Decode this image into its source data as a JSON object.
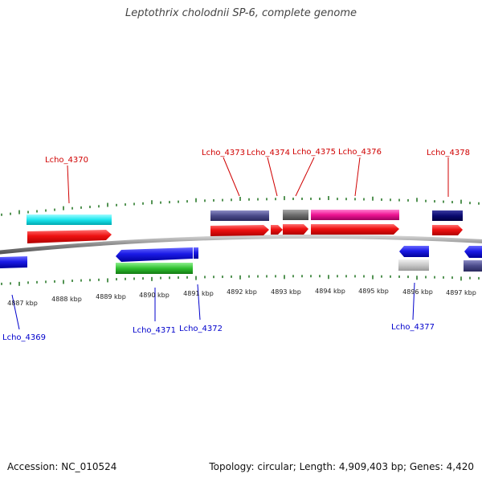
{
  "title": "Leptothrix cholodnii SP-6, complete genome",
  "footer": {
    "accession": "Accession: NC_010524",
    "summary": "Topology: circular; Length: 4,909,403 bp; Genes: 4,420"
  },
  "kbp_labels": [
    "4887 kbp",
    "4888 kbp",
    "4889 kbp",
    "4890 kbp",
    "4891 kbp",
    "4892 kbp",
    "4893 kbp",
    "4894 kbp",
    "4895 kbp",
    "4896 kbp",
    "4897 kbp"
  ],
  "gene_labels_top": [
    "Lcho_4370",
    "Lcho_4373",
    "Lcho_4374",
    "Lcho_4375",
    "Lcho_4376",
    "Lcho_4378"
  ],
  "gene_labels_bottom": [
    "Lcho_4369",
    "Lcho_4371",
    "Lcho_4372",
    "Lcho_4377"
  ],
  "colors": {
    "cds": "#ee1111",
    "reverse_cds": "#1a1ae6",
    "tick": "#2a7a2a",
    "backbone": "#8a8a8a",
    "label_top": "#d00000",
    "label_bottom": "#0000cc"
  }
}
